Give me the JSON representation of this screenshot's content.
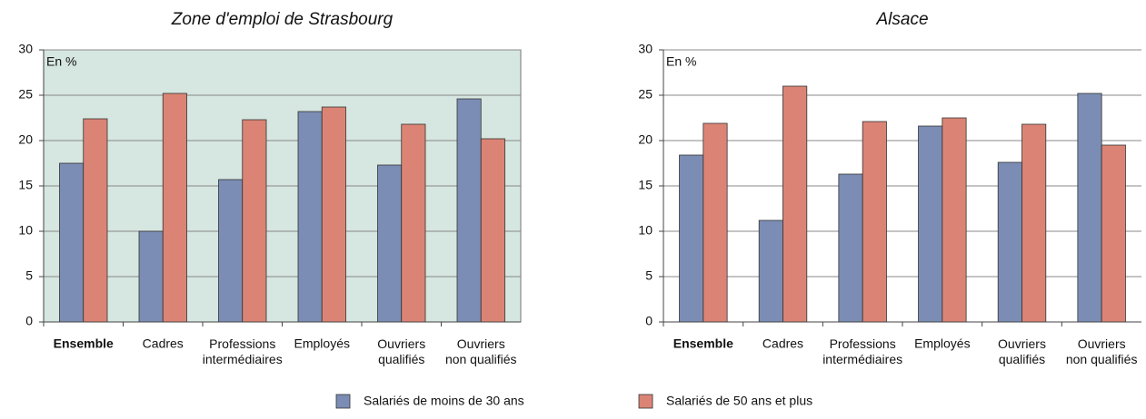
{
  "chart_data": [
    {
      "type": "bar",
      "title": "Zone d'emploi de Strasbourg",
      "annotation": "En %",
      "categories": [
        "Ensemble",
        "Cadres",
        "Professions\nintermédiaires",
        "Employés",
        "Ouvriers\nqualifiés",
        "Ouvriers\nnon qualifiés"
      ],
      "bold_index": 0,
      "background": "#d6e6e0",
      "series": [
        {
          "values": [
            17.5,
            10,
            15.7,
            23.2,
            17.3,
            24.6
          ]
        },
        {
          "values": [
            22.4,
            25.2,
            22.3,
            23.7,
            21.8,
            20.2
          ]
        }
      ],
      "ylim": [
        0,
        30
      ],
      "yticks": [
        0,
        5,
        10,
        15,
        20,
        25,
        30
      ],
      "grid": true
    },
    {
      "type": "bar",
      "title": "Alsace",
      "annotation": "En %",
      "categories": [
        "Ensemble",
        "Cadres",
        "Professions\nintermédiaires",
        "Employés",
        "Ouvriers\nqualifiés",
        "Ouvriers\nnon qualifiés"
      ],
      "bold_index": 0,
      "background": "#ffffff",
      "series": [
        {
          "values": [
            18.4,
            11.2,
            16.3,
            21.6,
            17.6,
            25.2
          ]
        },
        {
          "values": [
            21.9,
            26,
            22.1,
            22.5,
            21.8,
            19.5
          ]
        }
      ],
      "ylim": [
        0,
        30
      ],
      "yticks": [
        0,
        5,
        10,
        15,
        20,
        25,
        30
      ],
      "grid": true
    }
  ],
  "legend": [
    {
      "name": "Salariés de moins de 30 ans",
      "color": "#7b8db4"
    },
    {
      "name": "Salariés de 50 ans et plus",
      "color": "#db8475"
    }
  ]
}
